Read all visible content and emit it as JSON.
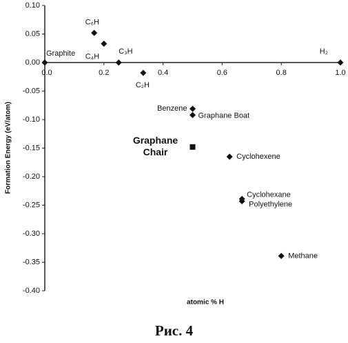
{
  "chart_data": {
    "type": "scatter",
    "x_label": "atomic % H",
    "y_label": "Formation Energy (eV/atom)",
    "x": [
      0,
      0.167,
      0.2,
      0.25,
      0.333,
      1.0,
      0.5,
      0.5,
      0.5,
      0.625,
      0.667,
      0.667,
      0.8
    ],
    "values": [
      0,
      0.052,
      0.033,
      0.0,
      -0.018,
      0,
      -0.081,
      -0.092,
      -0.148,
      -0.165,
      -0.239,
      -0.243,
      -0.339
    ],
    "point_labels": [
      "Graphite",
      "C₆H",
      "C₄H",
      "C₃H",
      "C₂H",
      "H₂",
      "Benzene",
      "Graphane Boat",
      "Graphane Chair",
      "Cyclohexene",
      "Cyclohexane",
      "Polyethylene",
      "Methane"
    ],
    "markers": [
      "diamond",
      "diamond",
      "diamond",
      "diamond",
      "diamond",
      "diamond",
      "diamond",
      "diamond",
      "square",
      "diamond",
      "diamond",
      "diamond",
      "diamond"
    ],
    "color": "#111111",
    "xlim": [
      0,
      1.0
    ],
    "ylim": [
      -0.4,
      0.1
    ],
    "xticks": [
      {
        "value": 0,
        "label": "0.0"
      },
      0.2,
      0.4,
      0.6,
      0.8,
      {
        "value": 1,
        "label": "1.0"
      }
    ],
    "yticks": [
      {
        "value": 0.1,
        "label": "0.10"
      },
      {
        "value": 0.05,
        "label": "0.05"
      },
      {
        "value": 0,
        "label": "0.00"
      },
      {
        "value": -0.05,
        "label": "-0.05"
      },
      {
        "value": -0.1,
        "label": "-0.10"
      },
      {
        "value": -0.15,
        "label": "-0.15"
      },
      {
        "value": -0.2,
        "label": "-0.20"
      },
      {
        "value": -0.25,
        "label": "-0.25"
      },
      {
        "value": -0.3,
        "label": "-0.30"
      },
      {
        "value": -0.35,
        "label": "-0.35"
      },
      {
        "value": -0.4,
        "label": "-0.40"
      }
    ]
  },
  "caption": "Рис. 4"
}
